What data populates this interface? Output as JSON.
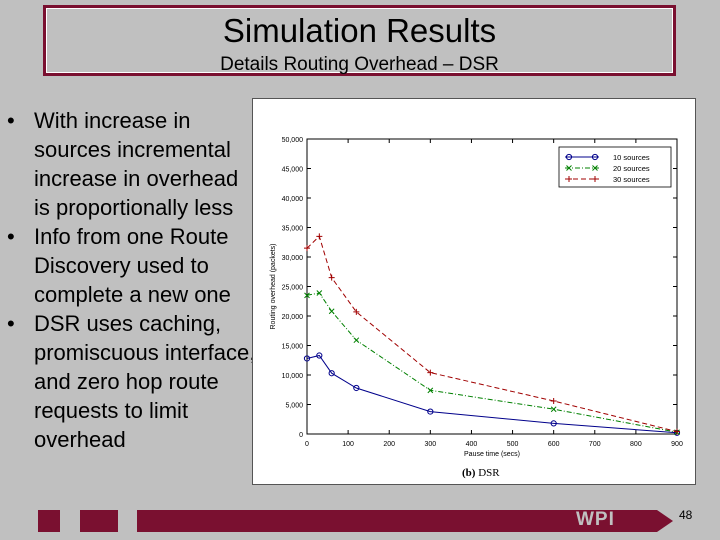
{
  "slide": {
    "title": "Simulation Results",
    "subtitle": "Details Routing Overhead –  DSR",
    "page_number": "48",
    "logo_text": "WPI"
  },
  "bullets": [
    "With increase in sources incremental increase in overhead is proportionally less",
    "Info from one Route Discovery used to complete a new one",
    "DSR uses caching, promiscuous interface, and zero hop route requests to limit overhead"
  ],
  "bullet_symbol": "•",
  "colors": {
    "accent": "#7a1030",
    "background": "#c0c0c0",
    "series_10": "#00008b",
    "series_20": "#008000",
    "series_30": "#a00000"
  },
  "chart_data": {
    "type": "line",
    "title": "",
    "caption_label": "(b)",
    "caption_text": "DSR",
    "xlabel": "Pause time (secs)",
    "ylabel": "Routing overhead (packets)",
    "xlim": [
      0,
      900
    ],
    "ylim": [
      0,
      50000
    ],
    "x_ticks": [
      0,
      100,
      200,
      300,
      400,
      500,
      600,
      700,
      800,
      900
    ],
    "y_ticks": [
      0,
      5000,
      10000,
      15000,
      20000,
      25000,
      30000,
      35000,
      40000,
      45000,
      50000
    ],
    "y_tick_labels": [
      "0",
      "5,000",
      "10,000",
      "15,000",
      "20,000",
      "25,000",
      "30,000",
      "35,000",
      "40,000",
      "45,000",
      "50,000"
    ],
    "grid": false,
    "legend_position": "top-right",
    "series": [
      {
        "name": "10 sources",
        "marker": "circle",
        "dash": "solid",
        "x": [
          0,
          30,
          60,
          120,
          300,
          600,
          900
        ],
        "y": [
          12800,
          13300,
          10300,
          7800,
          3800,
          1800,
          200
        ]
      },
      {
        "name": "20 sources",
        "marker": "x",
        "dash": "dashdot",
        "x": [
          0,
          30,
          60,
          120,
          300,
          600,
          900
        ],
        "y": [
          23500,
          23900,
          20800,
          15900,
          7400,
          4200,
          300
        ]
      },
      {
        "name": "30 sources",
        "marker": "plus",
        "dash": "dashed",
        "x": [
          0,
          30,
          60,
          120,
          300,
          600,
          900
        ],
        "y": [
          31500,
          33500,
          26500,
          20700,
          10400,
          5600,
          400
        ]
      }
    ]
  }
}
